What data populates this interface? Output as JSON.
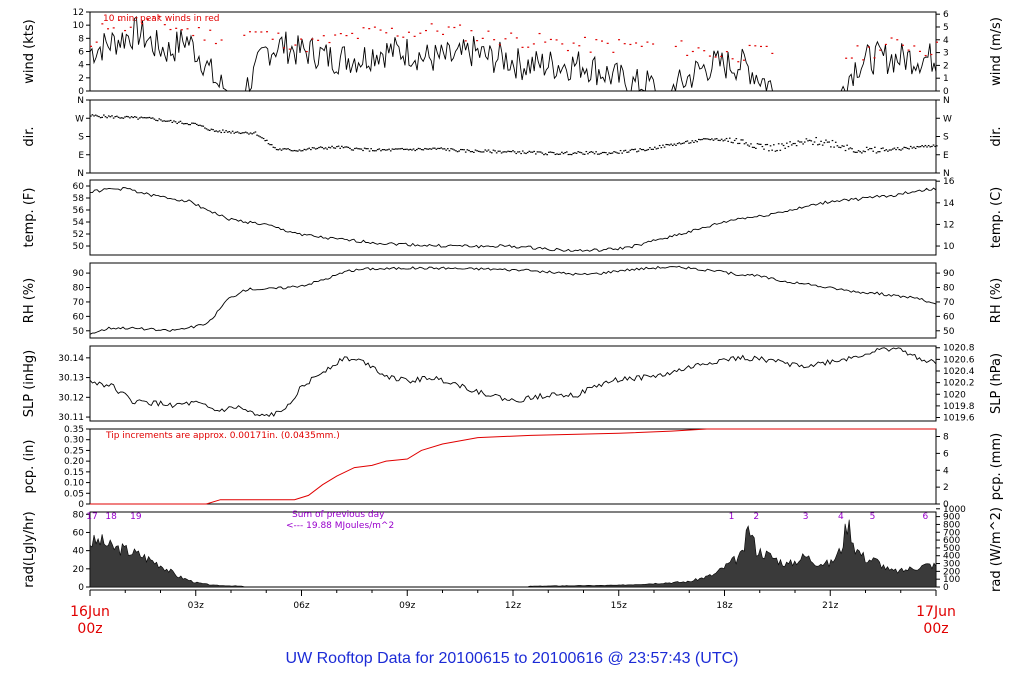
{
  "title": "UW Rooftop Data for 20100615  to  20100616 @ 23:57:43  (UTC)",
  "colors": {
    "red": "#e00000",
    "blue": "#1c2bd6",
    "purple": "#9900cc",
    "line": "#000000"
  },
  "time_axis": {
    "start_label": [
      "16Jun",
      "00z"
    ],
    "end_label": [
      "17Jun",
      "00z"
    ],
    "ticks": [
      "03z",
      "06z",
      "09z",
      "12z",
      "15z",
      "18z",
      "21z"
    ],
    "hours": 24
  },
  "chart_data": [
    {
      "id": "wind",
      "type": "line",
      "ylabel_left": "wind (kts)",
      "ylabel_right": "wind (m/s)",
      "ylim": [
        0,
        12
      ],
      "yticks_left": [
        "0",
        "2",
        "4",
        "6",
        "8",
        "10",
        "12"
      ],
      "ylim_right": [
        0,
        6.17
      ],
      "yticks_right": [
        "0",
        "1",
        "2",
        "3",
        "4",
        "5",
        "6"
      ],
      "annotation": "10 min. peak winds in red",
      "series": [
        {
          "values": [
            6,
            7,
            8,
            9,
            7,
            6,
            8,
            5,
            1,
            0,
            1,
            6,
            7,
            6,
            6,
            5,
            5,
            5,
            6,
            6,
            6,
            5,
            5,
            5,
            6,
            5,
            5,
            4,
            4,
            4,
            4,
            4,
            3,
            2,
            1,
            1,
            0,
            1,
            3,
            4,
            4,
            4,
            2,
            0,
            0,
            0,
            0,
            0,
            4,
            5,
            5,
            5,
            5,
            5
          ]
        },
        {
          "name": "10 min. peak winds",
          "points": [
            [
              0.2,
              11
            ],
            [
              0.5,
              10.5
            ],
            [
              1.0,
              10
            ],
            [
              1.5,
              10.8
            ],
            [
              2.2,
              10
            ],
            [
              3.0,
              9
            ],
            [
              4.0,
              8
            ],
            [
              4.5,
              9
            ],
            [
              5.0,
              8.5
            ],
            [
              6.0,
              7
            ],
            [
              7.0,
              8
            ],
            [
              8.0,
              9
            ],
            [
              9.0,
              9
            ],
            [
              10.0,
              9.5
            ],
            [
              11.0,
              8.5
            ],
            [
              12.0,
              8
            ],
            [
              13.0,
              7.5
            ],
            [
              14.0,
              7
            ],
            [
              15.0,
              7
            ],
            [
              16.0,
              7
            ],
            [
              17.0,
              6.5
            ],
            [
              18.0,
              5.5
            ],
            [
              19.0,
              6
            ],
            [
              20.0,
              6
            ],
            [
              21.0,
              5
            ],
            [
              22.0,
              6
            ],
            [
              23.0,
              7.5
            ],
            [
              23.6,
              6.5
            ]
          ]
        }
      ]
    },
    {
      "id": "dir",
      "type": "scatter",
      "ylabel_left": "dir.",
      "ylabel_right": "dir.",
      "yticks": [
        "N",
        "W",
        "S",
        "E",
        "N"
      ],
      "values": [
        285,
        280,
        275,
        270,
        255,
        245,
        210,
        205,
        200,
        120,
        115,
        125,
        130,
        120,
        115,
        118,
        120,
        122,
        112,
        110,
        108,
        105,
        100,
        100,
        102,
        100,
        110,
        120,
        140,
        155,
        170,
        165,
        150,
        125,
        140,
        160,
        150,
        120,
        110,
        120,
        130,
        140
      ]
    },
    {
      "id": "temp",
      "type": "line",
      "ylabel_left": "temp. (F)",
      "ylabel_right": "temp. (C)",
      "ylim": [
        48.5,
        61.0
      ],
      "yticks_left": [
        "50",
        "52",
        "54",
        "56",
        "58",
        "60"
      ],
      "ylim_right": [
        9.17,
        16.11
      ],
      "yticks_right": [
        "10",
        "12",
        "14",
        "16"
      ],
      "values": [
        59.0,
        59.5,
        59.5,
        58.5,
        58.0,
        57.5,
        56.0,
        54.5,
        54.0,
        53.5,
        52.5,
        51.8,
        51.3,
        51.0,
        50.7,
        50.4,
        50.3,
        50.1,
        50.0,
        50.0,
        49.9,
        50.0,
        49.8,
        49.6,
        49.3,
        49.2,
        49.3,
        49.6,
        50.2,
        51.2,
        52.0,
        52.8,
        53.8,
        54.6,
        54.9,
        55.6,
        56.2,
        57.0,
        57.6,
        57.8,
        58.2,
        58.5,
        59.2,
        59.5
      ]
    },
    {
      "id": "rh",
      "type": "line",
      "ylabel_left": "RH (%)",
      "ylabel_right": "RH (%)",
      "ylim": [
        45,
        97
      ],
      "yticks_left": [
        "50",
        "60",
        "70",
        "80",
        "90"
      ],
      "yticks_right": [
        "50",
        "60",
        "70",
        "80",
        "90"
      ],
      "values": [
        48,
        52,
        52,
        51,
        50,
        52,
        55,
        72,
        79,
        79,
        80,
        82,
        86,
        91,
        93,
        93,
        93.5,
        93.5,
        93.5,
        93,
        93,
        92.5,
        92,
        91,
        90,
        89,
        90,
        92,
        93,
        94,
        94,
        92.5,
        91,
        89,
        88,
        85,
        83,
        81,
        79,
        77,
        76,
        74,
        73,
        68
      ]
    },
    {
      "id": "slp",
      "type": "line",
      "ylabel_left": "SLP (inHg)",
      "ylabel_right": "SLP (hPa)",
      "ylim": [
        30.108,
        30.146
      ],
      "yticks_left": [
        "30.11",
        "30.12",
        "30.13",
        "30.14"
      ],
      "ylim_right": [
        1019.54,
        1020.83
      ],
      "yticks_right": [
        "1019.6",
        "1019.8",
        "1020",
        "1020.2",
        "1020.4",
        "1020.6",
        "1020.8"
      ],
      "values": [
        30.128,
        30.126,
        30.118,
        30.117,
        30.116,
        30.117,
        30.113,
        30.115,
        30.11,
        30.112,
        30.125,
        30.133,
        30.14,
        30.138,
        30.131,
        30.128,
        30.13,
        30.128,
        30.124,
        30.121,
        30.118,
        30.12,
        30.122,
        30.121,
        30.126,
        30.129,
        30.13,
        30.131,
        30.134,
        30.137,
        30.139,
        30.14,
        30.139,
        30.137,
        30.136,
        30.138,
        30.14,
        30.143,
        30.145,
        30.141,
        30.137
      ]
    },
    {
      "id": "pcp",
      "type": "line",
      "ylabel_left": "pcp. (in)",
      "ylabel_right": "pcp. (mm)",
      "ylim": [
        0,
        0.35
      ],
      "yticks_left": [
        "0",
        "0.05",
        "0.10",
        "0.15",
        "0.20",
        "0.25",
        "0.30",
        "0.35"
      ],
      "ylim_right": [
        0,
        8.89
      ],
      "yticks_right": [
        "0",
        "2",
        "4",
        "6",
        "8"
      ],
      "annotation": "Tip increments are approx. 0.00171in. (0.0435mm.)",
      "points": [
        [
          0,
          0
        ],
        [
          3.3,
          0
        ],
        [
          3.7,
          0.02
        ],
        [
          5.8,
          0.02
        ],
        [
          6.2,
          0.04
        ],
        [
          6.6,
          0.09
        ],
        [
          7.0,
          0.13
        ],
        [
          7.5,
          0.17
        ],
        [
          8.0,
          0.18
        ],
        [
          8.4,
          0.2
        ],
        [
          9.0,
          0.21
        ],
        [
          9.4,
          0.25
        ],
        [
          10.0,
          0.28
        ],
        [
          11.0,
          0.31
        ],
        [
          12.5,
          0.32
        ],
        [
          15.0,
          0.33
        ],
        [
          16.5,
          0.34
        ],
        [
          17.5,
          0.35
        ],
        [
          24,
          0.35
        ]
      ]
    },
    {
      "id": "rad",
      "type": "area",
      "ylabel_left": "rad(Lgly/hr)",
      "ylabel_right": "rad (W/m^2)",
      "ylim": [
        0,
        82.5
      ],
      "yticks_left": [
        "0",
        "20",
        "40",
        "60",
        "80"
      ],
      "ylim_right": [
        0,
        959
      ],
      "yticks_right": [
        "0",
        "100",
        "200",
        "300",
        "400",
        "500",
        "600",
        "700",
        "800",
        "900",
        "1000"
      ],
      "annotation": [
        "Sum of previous day",
        "<--- 19.88 MJoules/m^2"
      ],
      "points": [
        [
          0,
          50
        ],
        [
          0.3,
          52
        ],
        [
          0.6,
          45
        ],
        [
          1.0,
          42
        ],
        [
          1.5,
          35
        ],
        [
          2.0,
          25
        ],
        [
          2.5,
          12
        ],
        [
          3.0,
          5
        ],
        [
          3.5,
          2
        ],
        [
          4.3,
          1
        ],
        [
          4.4,
          0
        ],
        [
          12.4,
          0
        ],
        [
          12.5,
          1
        ],
        [
          15.0,
          2
        ],
        [
          17.0,
          6
        ],
        [
          17.7,
          14
        ],
        [
          18.2,
          28
        ],
        [
          18.5,
          36
        ],
        [
          18.7,
          68
        ],
        [
          18.9,
          42
        ],
        [
          19.3,
          35
        ],
        [
          19.8,
          25
        ],
        [
          20.3,
          35
        ],
        [
          20.6,
          28
        ],
        [
          21.0,
          26
        ],
        [
          21.3,
          42
        ],
        [
          21.5,
          75
        ],
        [
          21.7,
          45
        ],
        [
          22.0,
          32
        ],
        [
          22.3,
          30
        ],
        [
          22.7,
          18
        ],
        [
          23.0,
          18
        ],
        [
          23.4,
          22
        ],
        [
          23.8,
          25
        ],
        [
          24,
          24
        ]
      ],
      "hour_labels": [
        [
          "17",
          0.0
        ],
        [
          "18",
          0.6
        ],
        [
          "19",
          1.3
        ],
        [
          "1",
          18.2
        ],
        [
          "2",
          18.9
        ],
        [
          "3",
          20.3
        ],
        [
          "4",
          21.3
        ],
        [
          "5",
          22.2
        ],
        [
          "6",
          23.7
        ]
      ]
    }
  ]
}
